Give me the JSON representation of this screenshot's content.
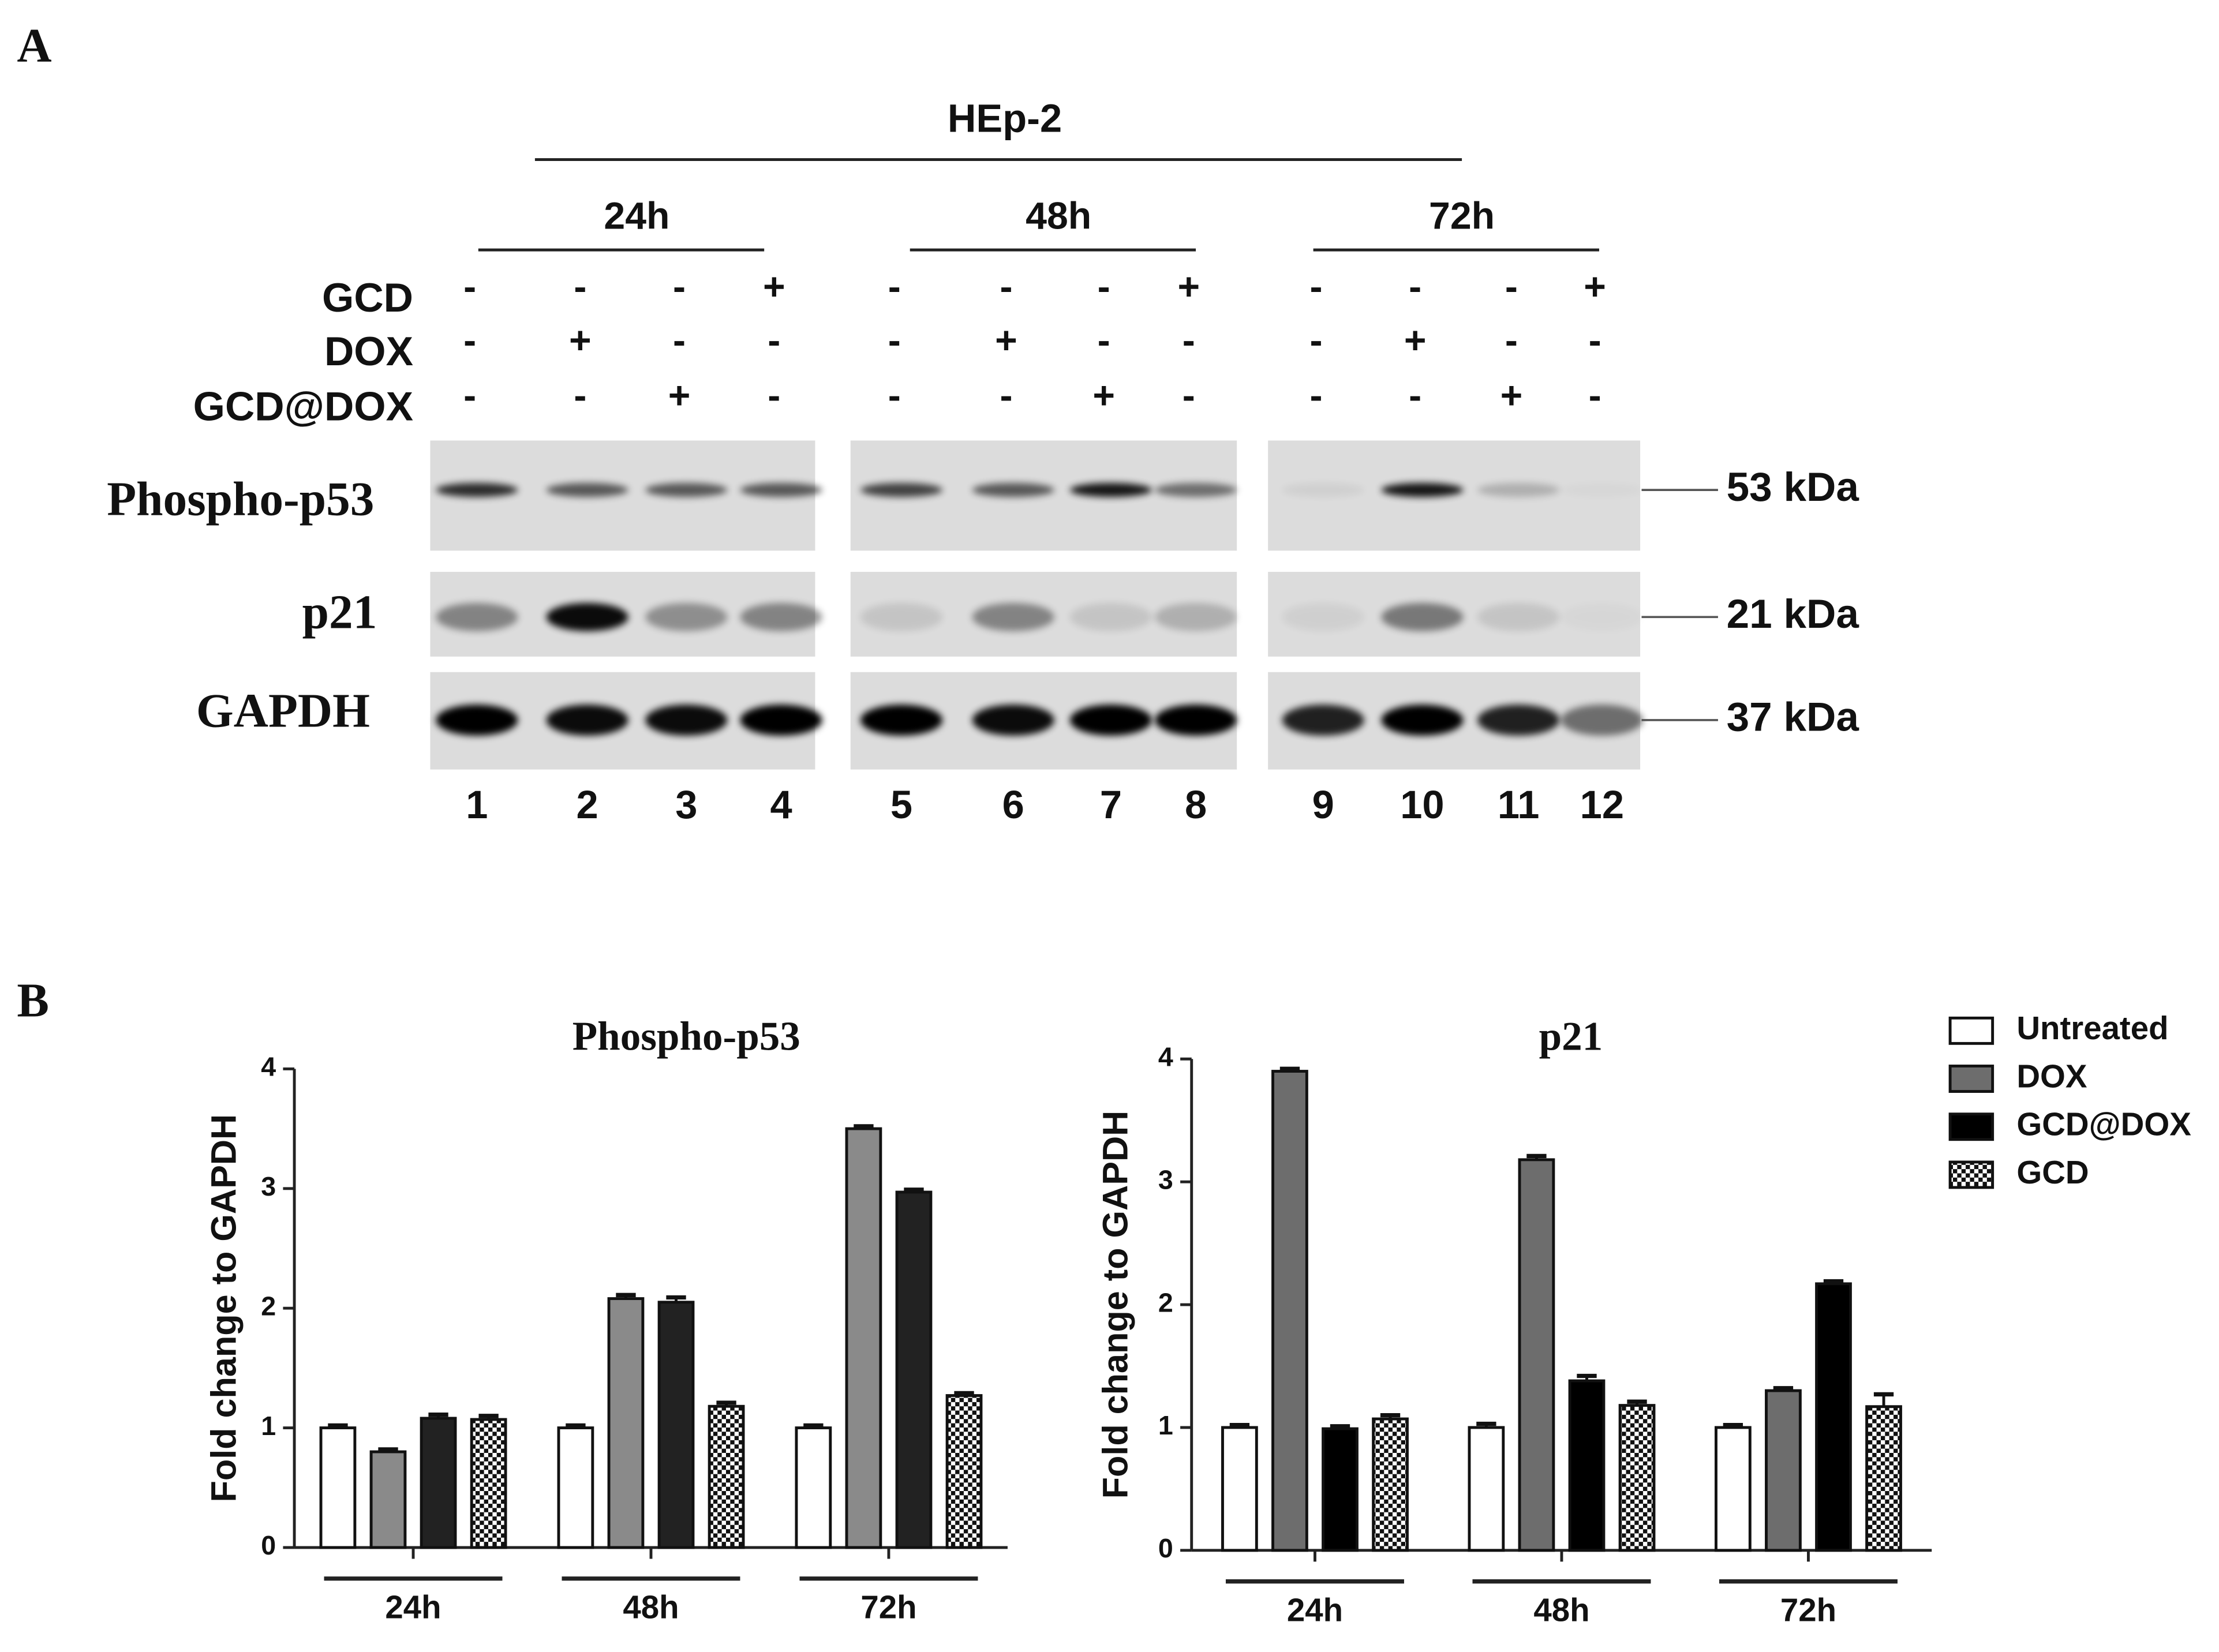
{
  "panel_labels": [
    "A",
    "B"
  ],
  "blot": {
    "cell_line": "HEp-2",
    "timepoints": [
      "24h",
      "48h",
      "72h"
    ],
    "treatments": [
      {
        "label": "GCD",
        "signs": [
          "-",
          "-",
          "-",
          "+",
          "-",
          "-",
          "-",
          "+",
          "-",
          "-",
          "-",
          "+"
        ]
      },
      {
        "label": "DOX",
        "signs": [
          "-",
          "+",
          "-",
          "-",
          "-",
          "+",
          "-",
          "-",
          "-",
          "+",
          "-",
          "-"
        ]
      },
      {
        "label": "GCD@DOX",
        "signs": [
          "-",
          "-",
          "+",
          "-",
          "-",
          "-",
          "+",
          "-",
          "-",
          "-",
          "+",
          "-"
        ]
      }
    ],
    "proteins": [
      "Phospho-p53",
      "p21",
      "GAPDH"
    ],
    "markers": [
      "53 kDa",
      "21 kDa",
      "37 kDa"
    ],
    "lanes": [
      "1",
      "2",
      "3",
      "4",
      "5",
      "6",
      "7",
      "8",
      "9",
      "10",
      "11",
      "12"
    ]
  },
  "chart_data": [
    {
      "type": "bar",
      "title": "Phospho-p53",
      "y_label": "Fold change to GAPDH",
      "categories": [
        "24h",
        "48h",
        "72h"
      ],
      "series": [
        {
          "color": "#ffffff",
          "values": [
            1,
            1,
            1
          ],
          "errors": [
            0.02,
            0.02,
            0.02
          ]
        },
        {
          "color": "#8a8a8a",
          "values": [
            0.8,
            2.08,
            3.5
          ],
          "errors": [
            0.02,
            0.03,
            0.02
          ]
        },
        {
          "color": "#222222",
          "values": [
            1.08,
            2.05,
            2.97
          ],
          "errors": [
            0.03,
            0.04,
            0.02
          ]
        },
        {
          "color": "#ffffff",
          "pattern": "checker",
          "values": [
            1.07,
            1.18,
            1.27
          ],
          "errors": [
            0.03,
            0.03,
            0.02
          ]
        }
      ],
      "ylim": [
        0,
        4
      ],
      "yticks": [
        0,
        1,
        2,
        3,
        4
      ],
      "grid": false,
      "legend": false
    },
    {
      "type": "bar",
      "title": "p21",
      "y_label": "Fold change to GAPDH",
      "categories": [
        "24h",
        "48h",
        "72h"
      ],
      "series": [
        {
          "name": "Untreated",
          "color": "#ffffff",
          "values": [
            1,
            1,
            1
          ],
          "errors": [
            0.02,
            0.03,
            0.02
          ]
        },
        {
          "name": "DOX",
          "color": "#6d6d6d",
          "values": [
            3.9,
            3.18,
            1.3
          ],
          "errors": [
            0.02,
            0.03,
            0.02
          ]
        },
        {
          "name": "GCD@DOX",
          "color": "#000000",
          "values": [
            0.99,
            1.38,
            2.17
          ],
          "errors": [
            0.02,
            0.04,
            0.02
          ]
        },
        {
          "name": "GCD",
          "color": "#ffffff",
          "pattern": "checker",
          "values": [
            1.07,
            1.18,
            1.17
          ],
          "errors": [
            0.03,
            0.03,
            0.1
          ]
        }
      ],
      "ylim": [
        0,
        4
      ],
      "yticks": [
        0,
        1,
        2,
        3,
        4
      ],
      "grid": false,
      "legend": "right"
    }
  ]
}
